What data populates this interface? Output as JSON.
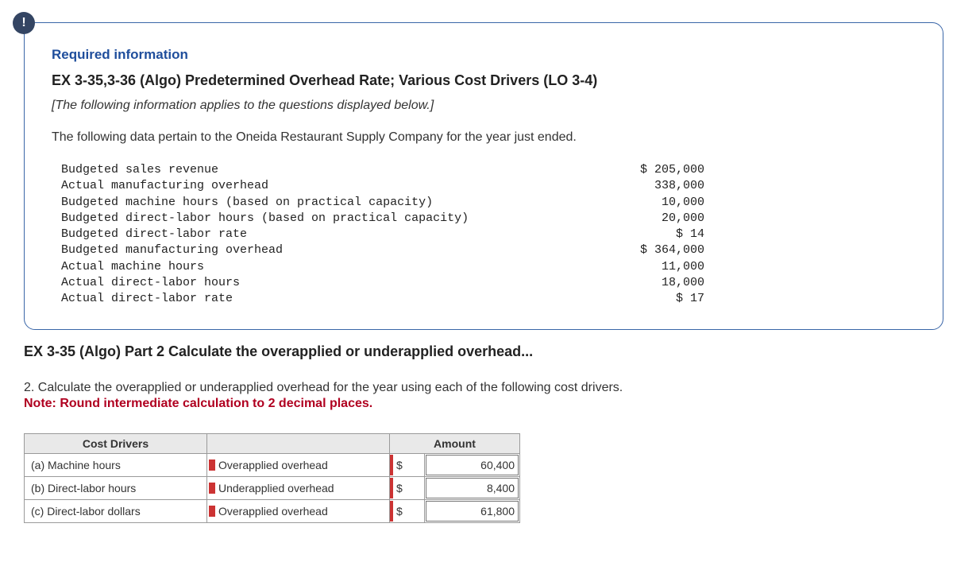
{
  "badge_icon": "!",
  "required_info_label": "Required information",
  "exercise_title": "EX 3-35,3-36 (Algo) Predetermined Overhead Rate; Various Cost Drivers (LO 3-4)",
  "italic_note": "[The following information applies to the questions displayed below.]",
  "intro_line": "The following data pertain to the Oneida Restaurant Supply Company for the year just ended.",
  "data_rows": [
    {
      "label": "Budgeted sales revenue",
      "value": "$ 205,000"
    },
    {
      "label": "Actual manufacturing overhead",
      "value": "338,000"
    },
    {
      "label": "Budgeted machine hours (based on practical capacity)",
      "value": "10,000"
    },
    {
      "label": "Budgeted direct-labor hours (based on practical capacity)",
      "value": "20,000"
    },
    {
      "label": "Budgeted direct-labor rate",
      "value": "$ 14"
    },
    {
      "label": "Budgeted manufacturing overhead",
      "value": "$ 364,000"
    },
    {
      "label": "Actual machine hours",
      "value": "11,000"
    },
    {
      "label": "Actual direct-labor hours",
      "value": "18,000"
    },
    {
      "label": "Actual direct-labor rate",
      "value": "$ 17"
    }
  ],
  "part_title": "EX 3-35 (Algo) Part 2 Calculate the overapplied or underapplied overhead...",
  "question_text": "2. Calculate the overapplied or underapplied overhead for the year using each of the following cost drivers.",
  "question_note": "Note: Round intermediate calculation to 2 decimal places.",
  "table": {
    "headers": {
      "driver": "Cost Drivers",
      "status": "",
      "amount": "Amount"
    },
    "rows": [
      {
        "driver": "(a) Machine hours",
        "status": "Overapplied overhead",
        "currency": "$",
        "amount": "60,400"
      },
      {
        "driver": "(b) Direct-labor hours",
        "status": "Underapplied overhead",
        "currency": "$",
        "amount": "8,400"
      },
      {
        "driver": "(c) Direct-labor dollars",
        "status": "Overapplied overhead",
        "currency": "$",
        "amount": "61,800"
      }
    ]
  },
  "colors": {
    "badge_bg": "#344563",
    "border": "#3a66a8",
    "link_blue": "#1f4e9c",
    "note_red": "#b00020",
    "marker_red": "#c33",
    "header_bg": "#e9e9e9"
  }
}
